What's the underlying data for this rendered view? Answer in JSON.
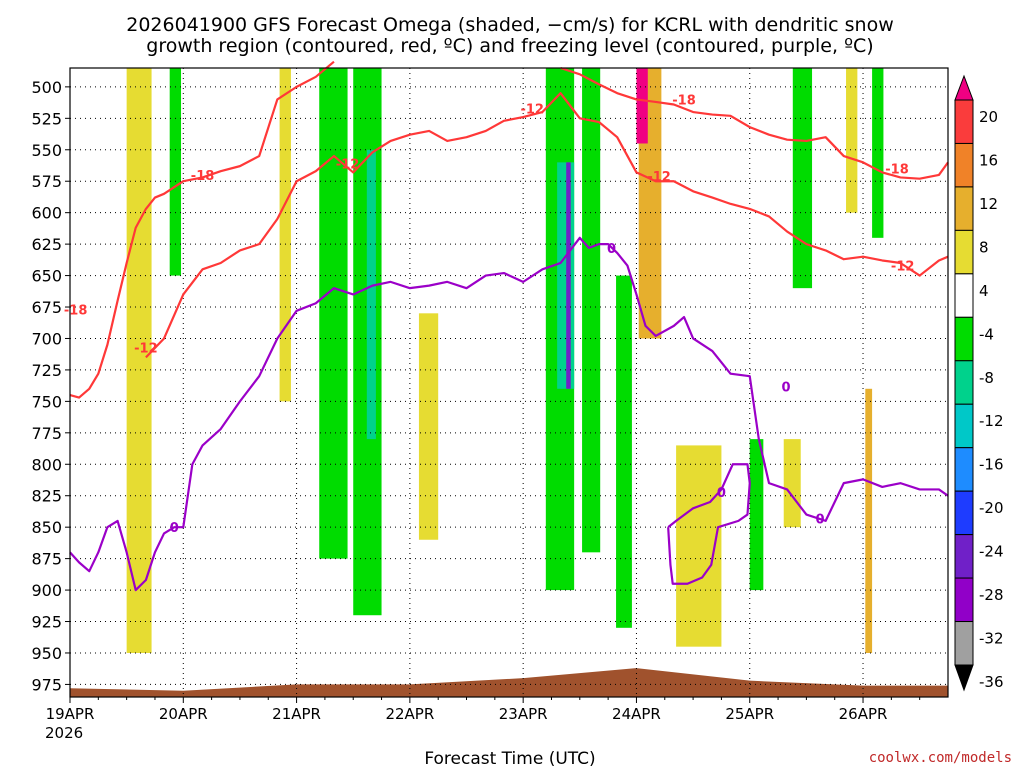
{
  "title_line1": "2026041900 GFS Forecast Omega (shaded, −cm/s) for KCRL with dendritic snow",
  "title_line2": "growth region (contoured, red, ºC) and freezing level (contoured, purple, ºC)",
  "xlabel": "Forecast Time (UTC)",
  "watermark": "coolwx.com/models",
  "first_date_year": "2026",
  "colors": {
    "dsg": "#ff3838",
    "freezing": "#9b00c8",
    "terrain": "#a0522d"
  },
  "chart_data": {
    "type": "heatmap",
    "x_ticks": [
      "19APR",
      "20APR",
      "21APR",
      "22APR",
      "23APR",
      "24APR",
      "25APR",
      "26APR"
    ],
    "xlim": [
      "2026-04-19T00",
      "2026-04-26T18"
    ],
    "y_ticks": [
      500,
      525,
      550,
      575,
      600,
      625,
      650,
      675,
      700,
      725,
      750,
      775,
      800,
      825,
      850,
      875,
      900,
      925,
      950,
      975
    ],
    "ylim": [
      485,
      985
    ],
    "y_axis": "pressure (hPa), inverted",
    "grid": true,
    "colorbar": {
      "levels": [
        -36,
        -32,
        -28,
        -24,
        -20,
        -16,
        -12,
        -8,
        -4,
        4,
        8,
        12,
        16,
        20
      ],
      "label_levels": [
        20,
        16,
        12,
        8,
        4,
        -4,
        -8,
        -12,
        -16,
        -20,
        -24,
        -28,
        -32,
        -36
      ],
      "colors": [
        "#000000",
        "#a0a0a0",
        "#9100c8",
        "#7020c8",
        "#1e3cff",
        "#1e8cff",
        "#00c8c8",
        "#00d28c",
        "#00dc00",
        "#ffffff",
        "#e6dc32",
        "#e6af2d",
        "#f08228",
        "#fa3c3c",
        "#f00082"
      ]
    },
    "contour_labels": {
      "dsg_minus_12": "-12",
      "dsg_minus_18": "-18",
      "freezing": "0"
    },
    "series": [
      {
        "name": "-18",
        "color": "#ff3838",
        "points": [
          [
            0.0,
            745
          ],
          [
            0.08,
            747
          ],
          [
            0.17,
            740
          ],
          [
            0.25,
            728
          ],
          [
            0.33,
            705
          ],
          [
            0.42,
            670
          ],
          [
            0.5,
            640
          ],
          [
            0.58,
            612
          ],
          [
            0.67,
            597
          ],
          [
            0.75,
            588
          ],
          [
            0.83,
            585
          ],
          [
            1.0,
            575
          ],
          [
            1.17,
            572
          ],
          [
            1.33,
            567
          ],
          [
            1.5,
            563
          ],
          [
            1.67,
            555
          ],
          [
            1.83,
            510
          ],
          [
            2.0,
            500
          ],
          [
            2.17,
            492
          ],
          [
            2.33,
            480
          ]
        ]
      },
      {
        "name": "-18",
        "color": "#ff3838",
        "points": [
          [
            4.33,
            485
          ],
          [
            4.5,
            490
          ],
          [
            4.67,
            498
          ],
          [
            4.83,
            505
          ],
          [
            5.0,
            510
          ],
          [
            5.17,
            512
          ],
          [
            5.33,
            514
          ],
          [
            5.5,
            520
          ],
          [
            5.67,
            522
          ],
          [
            5.83,
            523
          ],
          [
            6.0,
            532
          ],
          [
            6.17,
            538
          ],
          [
            6.33,
            542
          ],
          [
            6.5,
            543
          ],
          [
            6.67,
            540
          ],
          [
            6.83,
            555
          ],
          [
            7.0,
            560
          ],
          [
            7.17,
            568
          ],
          [
            7.33,
            572
          ],
          [
            7.5,
            573
          ],
          [
            7.67,
            570
          ],
          [
            7.75,
            560
          ]
        ]
      },
      {
        "name": "-12",
        "color": "#ff3838",
        "points": [
          [
            0.67,
            715
          ],
          [
            0.83,
            700
          ],
          [
            1.0,
            665
          ],
          [
            1.17,
            645
          ],
          [
            1.33,
            640
          ],
          [
            1.5,
            630
          ],
          [
            1.67,
            625
          ],
          [
            1.83,
            605
          ],
          [
            2.0,
            575
          ],
          [
            2.17,
            567
          ],
          [
            2.33,
            555
          ],
          [
            2.5,
            568
          ],
          [
            2.67,
            552
          ],
          [
            2.83,
            543
          ],
          [
            3.0,
            538
          ],
          [
            3.17,
            535
          ],
          [
            3.33,
            543
          ],
          [
            3.5,
            540
          ],
          [
            3.67,
            535
          ],
          [
            3.83,
            527
          ],
          [
            4.0,
            524
          ],
          [
            4.17,
            520
          ],
          [
            4.33,
            505
          ],
          [
            4.5,
            525
          ],
          [
            4.67,
            528
          ],
          [
            4.83,
            540
          ],
          [
            5.0,
            568
          ],
          [
            5.17,
            575
          ],
          [
            5.33,
            575
          ],
          [
            5.5,
            583
          ],
          [
            5.67,
            588
          ],
          [
            5.83,
            593
          ],
          [
            6.0,
            597
          ],
          [
            6.17,
            603
          ],
          [
            6.33,
            615
          ],
          [
            6.5,
            625
          ],
          [
            6.67,
            630
          ],
          [
            6.83,
            637
          ],
          [
            7.0,
            635
          ],
          [
            7.17,
            638
          ],
          [
            7.33,
            640
          ],
          [
            7.5,
            650
          ],
          [
            7.67,
            638
          ],
          [
            7.75,
            635
          ]
        ]
      },
      {
        "name": "0",
        "color": "#9b00c8",
        "points": [
          [
            0.0,
            870
          ],
          [
            0.08,
            878
          ],
          [
            0.17,
            885
          ],
          [
            0.25,
            870
          ],
          [
            0.33,
            850
          ],
          [
            0.42,
            845
          ],
          [
            0.5,
            870
          ],
          [
            0.58,
            900
          ],
          [
            0.67,
            892
          ],
          [
            0.75,
            870
          ],
          [
            0.83,
            855
          ],
          [
            0.92,
            850
          ],
          [
            1.0,
            850
          ],
          [
            1.08,
            800
          ],
          [
            1.17,
            785
          ],
          [
            1.33,
            772
          ],
          [
            1.5,
            750
          ],
          [
            1.67,
            730
          ],
          [
            1.83,
            700
          ],
          [
            2.0,
            678
          ],
          [
            2.17,
            672
          ],
          [
            2.33,
            660
          ],
          [
            2.5,
            665
          ],
          [
            2.67,
            658
          ],
          [
            2.83,
            655
          ],
          [
            3.0,
            660
          ],
          [
            3.17,
            658
          ],
          [
            3.33,
            655
          ],
          [
            3.5,
            660
          ],
          [
            3.67,
            650
          ],
          [
            3.83,
            648
          ],
          [
            4.0,
            655
          ],
          [
            4.17,
            645
          ],
          [
            4.33,
            640
          ],
          [
            4.5,
            620
          ],
          [
            4.58,
            628
          ],
          [
            4.67,
            625
          ],
          [
            4.75,
            625
          ],
          [
            4.83,
            632
          ],
          [
            4.92,
            642
          ],
          [
            5.0,
            665
          ],
          [
            5.08,
            690
          ],
          [
            5.17,
            698
          ],
          [
            5.33,
            690
          ],
          [
            5.42,
            683
          ],
          [
            5.5,
            700
          ],
          [
            5.67,
            710
          ],
          [
            5.83,
            728
          ],
          [
            6.0,
            730
          ],
          [
            6.08,
            780
          ],
          [
            6.17,
            815
          ],
          [
            6.33,
            820
          ],
          [
            6.5,
            840
          ],
          [
            6.67,
            845
          ],
          [
            6.83,
            815
          ],
          [
            7.0,
            812
          ],
          [
            7.17,
            818
          ],
          [
            7.33,
            815
          ],
          [
            7.5,
            820
          ],
          [
            7.67,
            820
          ],
          [
            7.75,
            825
          ]
        ]
      },
      {
        "name": "0 (closed contour)",
        "color": "#9b00c8",
        "points": [
          [
            5.28,
            850
          ],
          [
            5.35,
            845
          ],
          [
            5.5,
            835
          ],
          [
            5.65,
            830
          ],
          [
            5.75,
            820
          ],
          [
            5.85,
            800
          ],
          [
            5.98,
            800
          ],
          [
            6.0,
            815
          ],
          [
            5.98,
            840
          ],
          [
            5.9,
            845
          ],
          [
            5.72,
            850
          ],
          [
            5.66,
            880
          ],
          [
            5.58,
            890
          ],
          [
            5.45,
            895
          ],
          [
            5.32,
            895
          ],
          [
            5.3,
            880
          ],
          [
            5.28,
            850
          ]
        ]
      }
    ],
    "omega_regions": [
      {
        "x": [
          0.5,
          0.72
        ],
        "p": [
          485,
          950
        ],
        "level": "4 to 8"
      },
      {
        "x": [
          0.88,
          0.98
        ],
        "p": [
          485,
          650
        ],
        "level": "-4 to -8"
      },
      {
        "x": [
          1.85,
          1.95
        ],
        "p": [
          485,
          750
        ],
        "level": "4 to 8"
      },
      {
        "x": [
          2.2,
          2.45
        ],
        "p": [
          485,
          875
        ],
        "level": "-4 to -8"
      },
      {
        "x": [
          2.5,
          2.75
        ],
        "p": [
          485,
          920
        ],
        "level": "-4 to -8"
      },
      {
        "x": [
          2.62,
          2.7
        ],
        "p": [
          550,
          780
        ],
        "level": "-8 to -12"
      },
      {
        "x": [
          3.08,
          3.25
        ],
        "p": [
          680,
          860
        ],
        "level": "4 to 8"
      },
      {
        "x": [
          4.2,
          4.45
        ],
        "p": [
          485,
          900
        ],
        "level": "-4 to -8"
      },
      {
        "x": [
          4.3,
          4.45
        ],
        "p": [
          560,
          740
        ],
        "level": "-8 to -12"
      },
      {
        "x": [
          4.38,
          4.42
        ],
        "p": [
          560,
          740
        ],
        "level": "-24 to -28"
      },
      {
        "x": [
          4.52,
          4.68
        ],
        "p": [
          485,
          870
        ],
        "level": "-4 to -8"
      },
      {
        "x": [
          4.82,
          4.96
        ],
        "p": [
          650,
          930
        ],
        "level": "-4 to -8"
      },
      {
        "x": [
          5.02,
          5.22
        ],
        "p": [
          485,
          700
        ],
        "level": "8 to 12"
      },
      {
        "x": [
          5.0,
          5.1
        ],
        "p": [
          485,
          545
        ],
        "level": ">20"
      },
      {
        "x": [
          5.35,
          5.75
        ],
        "p": [
          785,
          945
        ],
        "level": "4 to 8"
      },
      {
        "x": [
          6.0,
          6.12
        ],
        "p": [
          780,
          900
        ],
        "level": "-4 to -8"
      },
      {
        "x": [
          6.3,
          6.45
        ],
        "p": [
          780,
          850
        ],
        "level": "4 to 8"
      },
      {
        "x": [
          6.38,
          6.55
        ],
        "p": [
          485,
          660
        ],
        "level": "-4 to -8"
      },
      {
        "x": [
          6.85,
          6.95
        ],
        "p": [
          485,
          600
        ],
        "level": "4 to 8"
      },
      {
        "x": [
          7.02,
          7.08
        ],
        "p": [
          740,
          950
        ],
        "level": "8 to 12"
      },
      {
        "x": [
          7.08,
          7.18
        ],
        "p": [
          485,
          620
        ],
        "level": "-4 to -8"
      }
    ],
    "terrain_top": [
      [
        0,
        978
      ],
      [
        1,
        980
      ],
      [
        2,
        975
      ],
      [
        3,
        975
      ],
      [
        4,
        970
      ],
      [
        5,
        962
      ],
      [
        6,
        972
      ],
      [
        7,
        976
      ],
      [
        7.75,
        976
      ]
    ]
  }
}
